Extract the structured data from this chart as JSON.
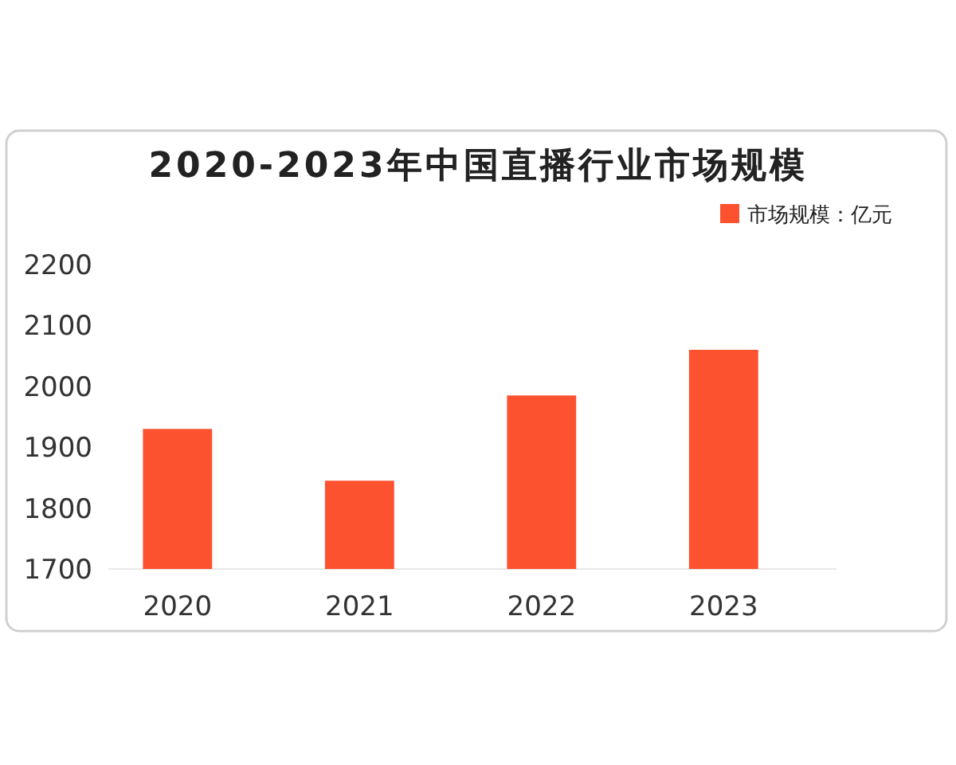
{
  "chart_data": {
    "type": "bar",
    "title": "2020-2023年中国直播行业市场规模",
    "categories": [
      "2020",
      "2021",
      "2022",
      "2023"
    ],
    "series": [
      {
        "name": "市场规模：亿元",
        "color": "#fc5230",
        "values": [
          1930,
          1845,
          1985,
          2060
        ]
      }
    ],
    "ylim": [
      1700,
      2200
    ],
    "yticks": [
      1700,
      1800,
      1900,
      2000,
      2100,
      2200
    ],
    "grid": false,
    "legend": "top right"
  }
}
